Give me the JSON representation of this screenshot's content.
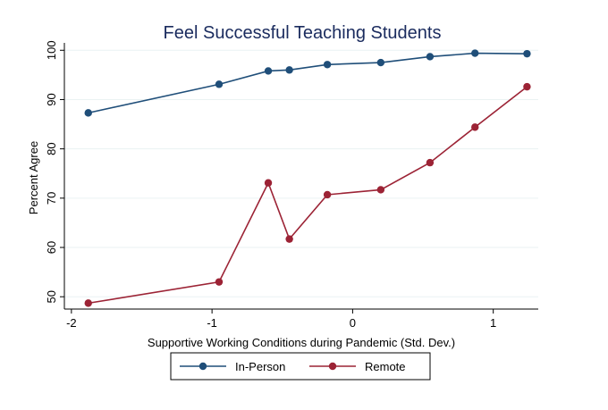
{
  "chart_data": {
    "type": "line",
    "title": "Feel Successful Teaching Students",
    "xlabel": "Supportive Working Conditions during Pandemic (Std. Dev.)",
    "ylabel": "Percent Agree",
    "xlim": [
      -2.05,
      1.32
    ],
    "ylim": [
      47.5,
      101.5
    ],
    "x_ticks": [
      -2,
      -1,
      0,
      1
    ],
    "x_tick_labels": [
      "-2",
      "-1",
      "0",
      "1"
    ],
    "y_ticks": [
      50,
      60,
      70,
      80,
      90,
      100
    ],
    "y_tick_labels": [
      "50",
      "60",
      "70",
      "80",
      "90",
      "100"
    ],
    "grid": true,
    "legend_position": "bottom",
    "series": [
      {
        "name": "In-Person",
        "color": "#1f4e79",
        "x": [
          -1.88,
          -0.95,
          -0.6,
          -0.45,
          -0.18,
          0.2,
          0.55,
          0.87,
          1.24
        ],
        "y": [
          87.3,
          93.1,
          95.8,
          96.0,
          97.1,
          97.5,
          98.7,
          99.4,
          99.3
        ]
      },
      {
        "name": "Remote",
        "color": "#9c2335",
        "x": [
          -1.88,
          -0.95,
          -0.6,
          -0.45,
          -0.18,
          0.2,
          0.55,
          0.87,
          1.24
        ],
        "y": [
          48.7,
          53.0,
          73.1,
          61.7,
          70.7,
          71.7,
          77.2,
          84.4,
          92.6
        ]
      }
    ]
  }
}
